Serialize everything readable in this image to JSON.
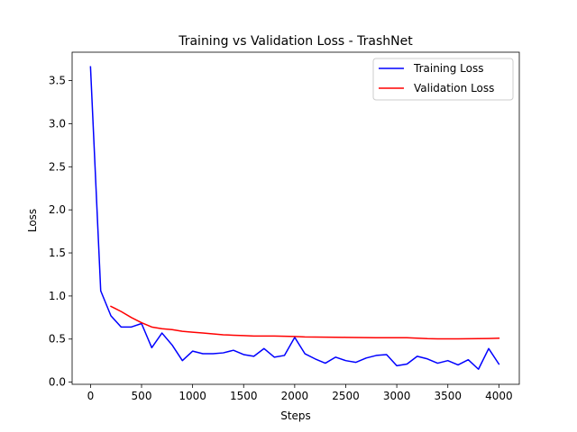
{
  "chart_data": {
    "type": "line",
    "title": "Training vs Validation Loss - TrashNet",
    "xlabel": "Steps",
    "ylabel": "Loss",
    "xlim": [
      -180,
      4200
    ],
    "ylim": [
      -0.025,
      3.83
    ],
    "xticks": [
      0,
      500,
      1000,
      1500,
      2000,
      2500,
      3000,
      3500,
      4000
    ],
    "xtick_labels": [
      "0",
      "500",
      "1000",
      "1500",
      "2000",
      "2500",
      "3000",
      "3500",
      "4000"
    ],
    "yticks": [
      0.0,
      0.5,
      1.0,
      1.5,
      2.0,
      2.5,
      3.0,
      3.5
    ],
    "ytick_labels": [
      "0.0",
      "0.5",
      "1.0",
      "1.5",
      "2.0",
      "2.5",
      "3.0",
      "3.5"
    ],
    "grid": false,
    "legend_position": "top-right",
    "series": [
      {
        "name": "Training Loss",
        "color": "#0000ff",
        "x": [
          0,
          100,
          200,
          300,
          400,
          500,
          600,
          700,
          800,
          900,
          1000,
          1100,
          1200,
          1300,
          1400,
          1500,
          1600,
          1700,
          1800,
          1900,
          2000,
          2100,
          2200,
          2300,
          2400,
          2500,
          2600,
          2700,
          2800,
          2900,
          3000,
          3100,
          3200,
          3300,
          3400,
          3500,
          3600,
          3700,
          3800,
          3900,
          4000
        ],
        "y": [
          3.66,
          1.06,
          0.77,
          0.64,
          0.64,
          0.68,
          0.4,
          0.57,
          0.43,
          0.25,
          0.36,
          0.33,
          0.33,
          0.34,
          0.37,
          0.32,
          0.3,
          0.39,
          0.29,
          0.31,
          0.52,
          0.33,
          0.27,
          0.22,
          0.29,
          0.25,
          0.23,
          0.28,
          0.31,
          0.32,
          0.19,
          0.21,
          0.3,
          0.27,
          0.22,
          0.25,
          0.2,
          0.26,
          0.15,
          0.39,
          0.21
        ]
      },
      {
        "name": "Validation Loss",
        "color": "#ff0000",
        "x": [
          200,
          300,
          400,
          500,
          600,
          700,
          800,
          900,
          1000,
          1100,
          1200,
          1300,
          1400,
          1500,
          1600,
          1700,
          1800,
          1900,
          2000,
          2100,
          2200,
          2300,
          2400,
          2500,
          2600,
          2700,
          2800,
          2900,
          3000,
          3100,
          3200,
          3300,
          3400,
          3500,
          3600,
          3700,
          3800,
          3900,
          4000
        ],
        "y": [
          0.88,
          0.82,
          0.75,
          0.69,
          0.64,
          0.62,
          0.61,
          0.59,
          0.58,
          0.57,
          0.56,
          0.55,
          0.545,
          0.54,
          0.535,
          0.535,
          0.535,
          0.532,
          0.53,
          0.525,
          0.523,
          0.522,
          0.521,
          0.52,
          0.518,
          0.517,
          0.516,
          0.516,
          0.515,
          0.515,
          0.51,
          0.505,
          0.503,
          0.503,
          0.503,
          0.504,
          0.505,
          0.507,
          0.51
        ]
      }
    ]
  }
}
